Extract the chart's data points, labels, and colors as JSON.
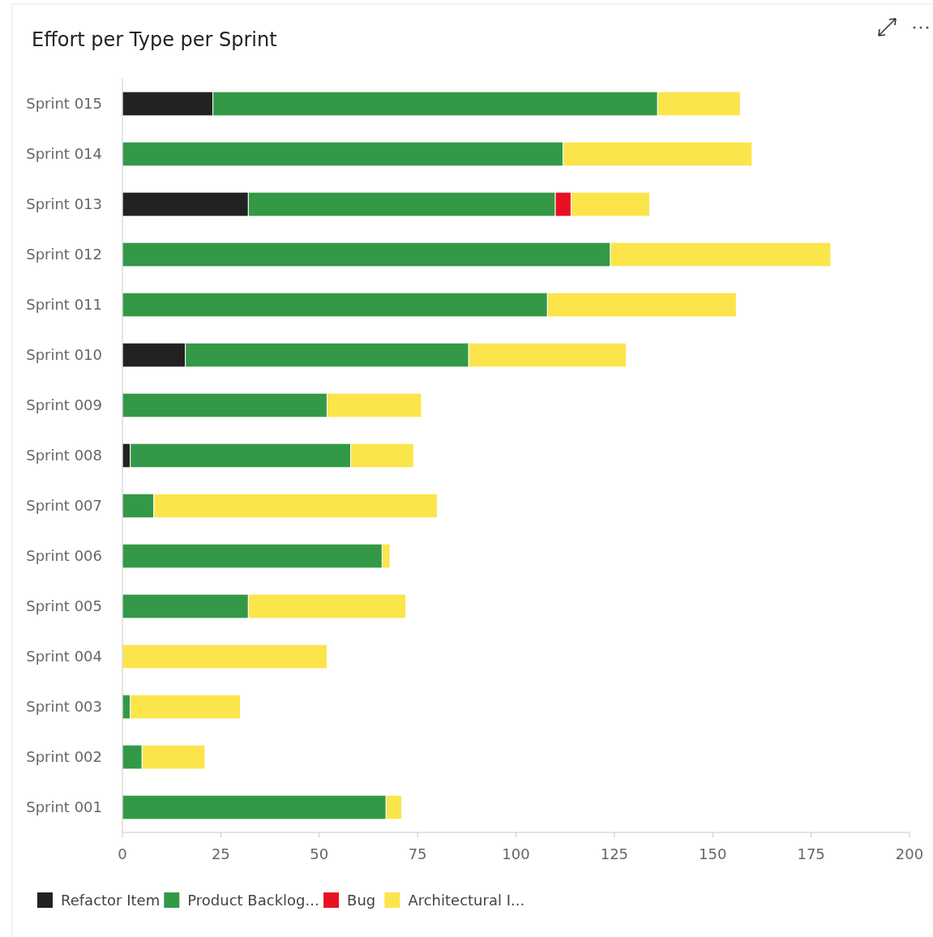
{
  "chart_data": {
    "type": "bar",
    "orientation": "horizontal",
    "stacked": true,
    "title": "Effort per Type per Sprint",
    "categories": [
      "Sprint 015",
      "Sprint 014",
      "Sprint 013",
      "Sprint 012",
      "Sprint 011",
      "Sprint 010",
      "Sprint 009",
      "Sprint 008",
      "Sprint 007",
      "Sprint 006",
      "Sprint 005",
      "Sprint 004",
      "Sprint 003",
      "Sprint 002",
      "Sprint 001"
    ],
    "series": [
      {
        "name": "Refactor Item",
        "color": "#222222",
        "values": [
          23,
          0,
          32,
          0,
          0,
          16,
          0,
          2,
          0,
          0,
          0,
          0,
          0,
          0,
          0
        ]
      },
      {
        "name": "Product Backlog...",
        "color": "#339947",
        "values": [
          113,
          112,
          78,
          124,
          108,
          72,
          52,
          56,
          8,
          66,
          32,
          0,
          2,
          5,
          67
        ]
      },
      {
        "name": "Bug",
        "color": "#e81123",
        "values": [
          0,
          0,
          4,
          0,
          0,
          0,
          0,
          0,
          0,
          0,
          0,
          0,
          0,
          0,
          0
        ]
      },
      {
        "name": "Architectural I...",
        "color": "#fce44b",
        "values": [
          21,
          48,
          20,
          56,
          48,
          40,
          24,
          16,
          72,
          2,
          40,
          52,
          28,
          16,
          4
        ]
      }
    ],
    "xlim": [
      0,
      200
    ],
    "xticks": [
      0,
      25,
      50,
      75,
      100,
      125,
      150,
      175,
      200
    ],
    "grid": false,
    "legend": "bottom"
  }
}
